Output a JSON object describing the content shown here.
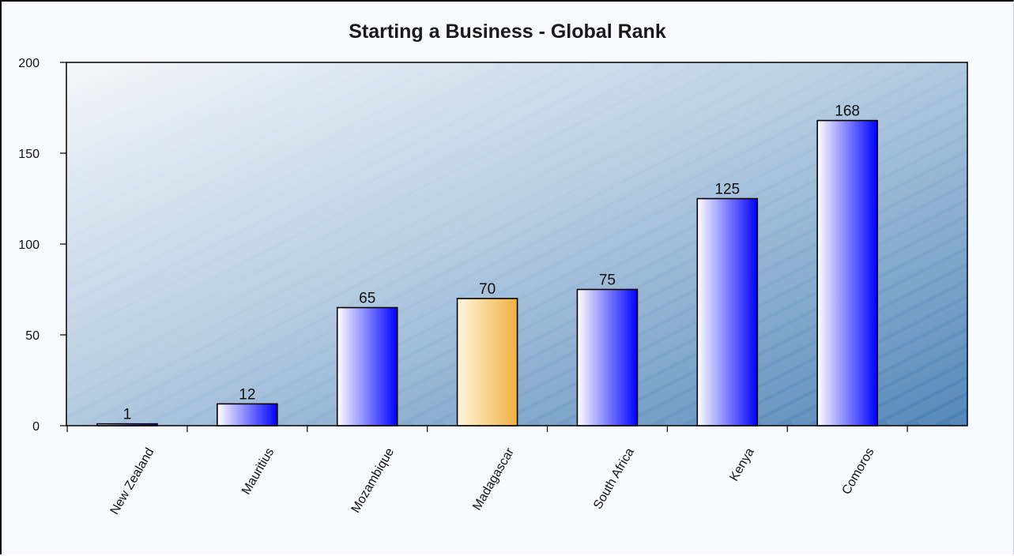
{
  "chart_data": {
    "type": "bar",
    "title": "Starting a Business - Global Rank",
    "xlabel": "",
    "ylabel": "",
    "categories": [
      "New Zealand",
      "Mauritius",
      "Mozambique",
      "Madagascar",
      "South Africa",
      "Kenya",
      "Comoros"
    ],
    "values": [
      1,
      12,
      65,
      70,
      75,
      125,
      168
    ],
    "highlight_category": "Madagascar",
    "ylim": [
      0,
      200
    ],
    "yticks": [
      0,
      50,
      100,
      150,
      200
    ],
    "grid": false,
    "legend": "none",
    "colors": {
      "bar_start": "#ffffff",
      "bar_end": "#0000ff",
      "highlight_start": "#fff6dc",
      "highlight_end": "#f0b040",
      "plot_bg_light": "#f4f7fb",
      "plot_bg_dark": "#4a80b4"
    }
  }
}
